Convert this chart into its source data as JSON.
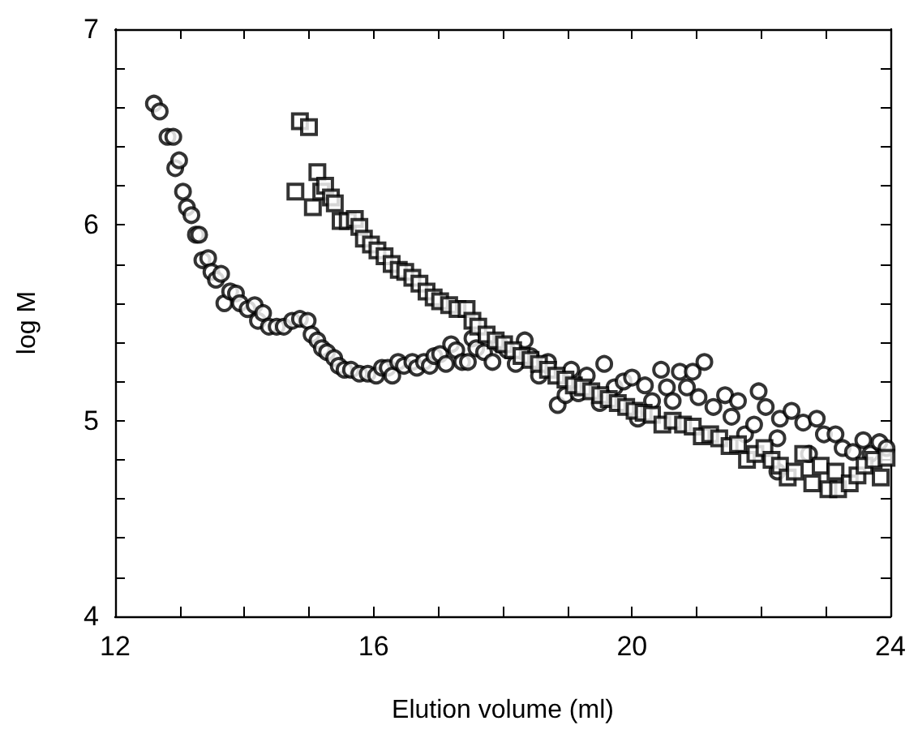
{
  "chart_data": {
    "type": "scatter",
    "xlabel": "Elution volume (ml)",
    "ylabel": "log M",
    "xlim": [
      12,
      24
    ],
    "ylim": [
      4,
      7
    ],
    "xticks": [
      12,
      {
        "value": 13,
        "label": null
      },
      {
        "value": 14,
        "label": null
      },
      {
        "value": 15,
        "label": null
      },
      16,
      {
        "value": 17,
        "label": null
      },
      {
        "value": 18,
        "label": null
      },
      {
        "value": 19,
        "label": null
      },
      20,
      {
        "value": 21,
        "label": null
      },
      {
        "value": 22,
        "label": null
      },
      {
        "value": 23,
        "label": null
      },
      24
    ],
    "yticks": [
      4,
      {
        "value": 4.2,
        "label": null
      },
      {
        "value": 4.4,
        "label": null
      },
      {
        "value": 4.6,
        "label": null
      },
      {
        "value": 4.8,
        "label": null
      },
      5,
      {
        "value": 5.2,
        "label": null
      },
      {
        "value": 5.4,
        "label": null
      },
      {
        "value": 5.6,
        "label": null
      },
      {
        "value": 5.8,
        "label": null
      },
      6,
      {
        "value": 6.2,
        "label": null
      },
      {
        "value": 6.4,
        "label": null
      },
      {
        "value": 6.6,
        "label": null
      },
      {
        "value": 6.8,
        "label": null
      },
      7
    ],
    "series": [
      {
        "color": "#000000",
        "marker": "circle",
        "x": [
          12.6,
          12.69,
          12.81,
          12.9,
          12.93,
          12.99,
          13.05,
          13.11,
          13.18,
          13.25,
          13.3,
          13.35,
          13.44,
          13.49,
          13.56,
          13.64,
          13.69,
          13.78,
          13.87,
          13.93,
          14.05,
          14.16,
          14.21,
          14.29,
          14.38,
          14.5,
          14.61,
          14.74,
          14.86,
          14.98,
          15.04,
          15.13,
          15.2,
          15.28,
          15.39,
          15.46,
          15.55,
          15.65,
          15.78,
          15.91,
          16.04,
          16.13,
          16.22,
          16.29,
          16.38,
          16.47,
          16.6,
          16.67,
          16.78,
          16.87,
          16.94,
          17.03,
          17.12,
          17.2,
          17.28,
          17.37,
          17.46,
          17.53,
          17.59,
          17.71,
          17.84,
          17.95,
          18.07,
          18.2,
          18.34,
          18.43,
          18.56,
          18.7,
          18.85,
          18.97,
          19.06,
          19.17,
          19.3,
          19.5,
          19.57,
          19.73,
          19.87,
          20.0,
          20.09,
          20.2,
          20.31,
          20.45,
          20.54,
          20.63,
          20.74,
          20.85,
          20.94,
          21.03,
          21.12,
          21.26,
          21.44,
          21.54,
          21.64,
          21.75,
          21.89,
          21.96,
          22.07,
          22.25,
          22.25,
          22.29,
          22.47,
          22.65,
          22.74,
          22.86,
          22.97,
          23.15,
          23.26,
          23.42,
          23.58,
          23.69,
          23.83,
          23.94
        ],
        "values": [
          6.62,
          6.58,
          6.45,
          6.45,
          6.29,
          6.33,
          6.17,
          6.09,
          6.05,
          5.95,
          5.95,
          5.82,
          5.83,
          5.76,
          5.72,
          5.75,
          5.6,
          5.66,
          5.65,
          5.6,
          5.57,
          5.59,
          5.51,
          5.55,
          5.48,
          5.48,
          5.48,
          5.51,
          5.52,
          5.51,
          5.44,
          5.41,
          5.37,
          5.35,
          5.32,
          5.28,
          5.26,
          5.26,
          5.24,
          5.24,
          5.23,
          5.27,
          5.27,
          5.23,
          5.3,
          5.28,
          5.3,
          5.27,
          5.3,
          5.28,
          5.33,
          5.34,
          5.29,
          5.39,
          5.36,
          5.3,
          5.3,
          5.42,
          5.37,
          5.35,
          5.3,
          5.39,
          5.36,
          5.29,
          5.41,
          5.33,
          5.23,
          5.3,
          5.08,
          5.13,
          5.26,
          5.14,
          5.23,
          5.09,
          5.29,
          5.17,
          5.2,
          5.22,
          5.01,
          5.18,
          5.1,
          5.26,
          5.17,
          5.1,
          5.25,
          5.17,
          5.25,
          5.12,
          5.3,
          5.07,
          5.13,
          5.02,
          5.1,
          4.93,
          4.98,
          5.15,
          5.07,
          4.91,
          4.74,
          5.01,
          5.05,
          4.99,
          4.83,
          5.01,
          4.93,
          4.93,
          4.86,
          4.84,
          4.9,
          4.83,
          4.89,
          4.86
        ]
      },
      {
        "color": "#000000",
        "marker": "square",
        "x": [
          14.79,
          14.86,
          15.0,
          15.06,
          15.13,
          15.19,
          15.25,
          15.34,
          15.4,
          15.49,
          15.6,
          15.71,
          15.78,
          15.85,
          15.96,
          16.06,
          16.17,
          16.28,
          16.39,
          16.49,
          16.6,
          16.71,
          16.82,
          16.93,
          17.03,
          17.17,
          17.3,
          17.44,
          17.53,
          17.62,
          17.75,
          17.89,
          18.02,
          18.16,
          18.29,
          18.43,
          18.56,
          18.7,
          18.83,
          18.97,
          19.1,
          19.24,
          19.37,
          19.51,
          19.64,
          19.78,
          19.91,
          20.04,
          20.18,
          20.31,
          20.47,
          20.63,
          20.79,
          20.94,
          21.08,
          21.21,
          21.35,
          21.51,
          21.64,
          21.78,
          21.91,
          22.05,
          22.16,
          22.29,
          22.41,
          22.52,
          22.65,
          22.79,
          22.92,
          23.04,
          23.15,
          23.19,
          23.37,
          23.49,
          23.6,
          23.74,
          23.85,
          23.94
        ],
        "values": [
          6.17,
          6.53,
          6.5,
          6.09,
          6.27,
          6.17,
          6.2,
          6.14,
          6.11,
          6.02,
          6.02,
          6.03,
          5.99,
          5.93,
          5.9,
          5.87,
          5.84,
          5.8,
          5.77,
          5.76,
          5.73,
          5.7,
          5.66,
          5.63,
          5.61,
          5.59,
          5.57,
          5.57,
          5.51,
          5.48,
          5.44,
          5.41,
          5.39,
          5.36,
          5.33,
          5.31,
          5.29,
          5.26,
          5.23,
          5.21,
          5.18,
          5.17,
          5.15,
          5.13,
          5.11,
          5.09,
          5.07,
          5.05,
          5.04,
          5.03,
          4.98,
          5.0,
          4.98,
          4.97,
          4.92,
          4.93,
          4.91,
          4.87,
          4.88,
          4.8,
          4.83,
          4.86,
          4.8,
          4.77,
          4.71,
          4.74,
          4.83,
          4.68,
          4.77,
          4.65,
          4.74,
          4.65,
          4.68,
          4.72,
          4.77,
          4.8,
          4.71,
          4.81
        ]
      }
    ]
  }
}
